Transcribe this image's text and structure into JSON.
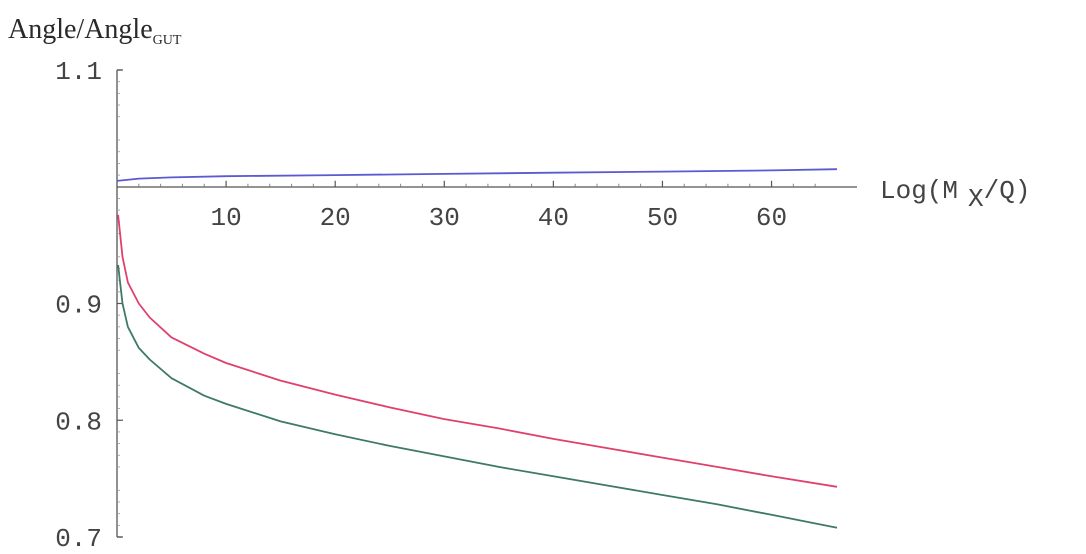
{
  "chart_data": {
    "type": "line",
    "title": "",
    "ylabel": {
      "main": "Angle/Angle",
      "subscript": "GUT"
    },
    "xlabel": {
      "prefix": "Log(M",
      "subscript": "X",
      "suffix": "/Q)"
    },
    "xlim": [
      0,
      66
    ],
    "ylim": [
      0.7,
      1.1
    ],
    "x_axis_crossing_y": 1.0,
    "x_ticks": [
      {
        "value": 10,
        "label": "10"
      },
      {
        "value": 20,
        "label": "20"
      },
      {
        "value": 30,
        "label": "30"
      },
      {
        "value": 40,
        "label": "40"
      },
      {
        "value": 50,
        "label": "50"
      },
      {
        "value": 60,
        "label": "60"
      }
    ],
    "y_ticks": [
      {
        "value": 1.1,
        "label": "1.1"
      },
      {
        "value": 0.9,
        "label": "0.9"
      },
      {
        "value": 0.8,
        "label": "0.8"
      },
      {
        "value": 0.7,
        "label": "0.7"
      }
    ],
    "grid": false,
    "series": [
      {
        "color": "#5a5ad2",
        "points": [
          [
            0,
            1.005
          ],
          [
            2,
            1.007
          ],
          [
            5,
            1.008
          ],
          [
            10,
            1.009
          ],
          [
            20,
            1.01
          ],
          [
            30,
            1.011
          ],
          [
            40,
            1.012
          ],
          [
            50,
            1.013
          ],
          [
            60,
            1.014
          ],
          [
            66,
            1.015
          ]
        ]
      },
      {
        "color": "#e0406c",
        "points": [
          [
            0.1,
            0.976
          ],
          [
            0.5,
            0.94
          ],
          [
            1,
            0.918
          ],
          [
            2,
            0.9
          ],
          [
            3,
            0.888
          ],
          [
            5,
            0.871
          ],
          [
            8,
            0.857
          ],
          [
            10,
            0.849
          ],
          [
            15,
            0.834
          ],
          [
            20,
            0.822
          ],
          [
            25,
            0.811
          ],
          [
            30,
            0.801
          ],
          [
            35,
            0.793
          ],
          [
            40,
            0.784
          ],
          [
            45,
            0.776
          ],
          [
            50,
            0.768
          ],
          [
            55,
            0.76
          ],
          [
            60,
            0.752
          ],
          [
            66,
            0.743
          ]
        ]
      },
      {
        "color": "#3e7a66",
        "points": [
          [
            0.1,
            0.933
          ],
          [
            0.5,
            0.9
          ],
          [
            1,
            0.88
          ],
          [
            2,
            0.862
          ],
          [
            3,
            0.852
          ],
          [
            5,
            0.836
          ],
          [
            8,
            0.821
          ],
          [
            10,
            0.814
          ],
          [
            15,
            0.799
          ],
          [
            20,
            0.788
          ],
          [
            25,
            0.778
          ],
          [
            30,
            0.769
          ],
          [
            35,
            0.76
          ],
          [
            40,
            0.752
          ],
          [
            45,
            0.744
          ],
          [
            50,
            0.736
          ],
          [
            55,
            0.728
          ],
          [
            60,
            0.719
          ],
          [
            66,
            0.708
          ]
        ]
      }
    ]
  }
}
